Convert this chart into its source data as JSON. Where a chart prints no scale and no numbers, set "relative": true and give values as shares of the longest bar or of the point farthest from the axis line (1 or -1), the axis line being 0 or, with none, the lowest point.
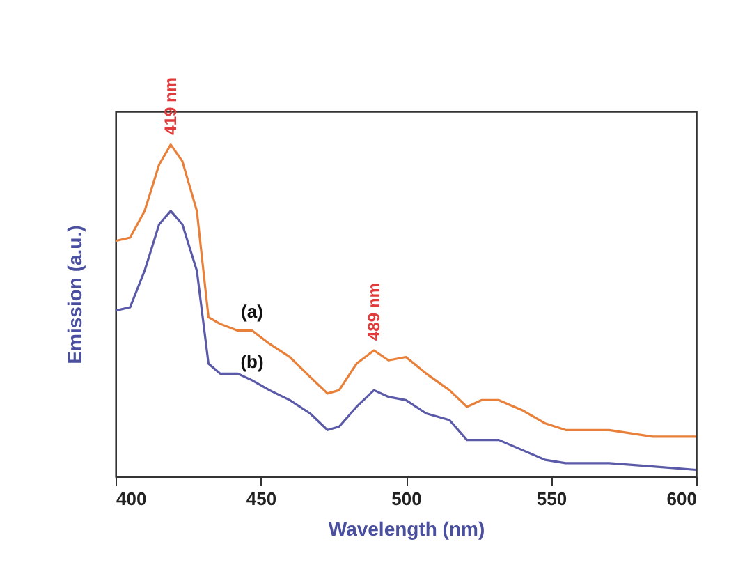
{
  "chart_data": {
    "type": "line",
    "xlabel": "Wavelength (nm)",
    "ylabel": "Emission (a.u.)",
    "relative": true,
    "xlim": [
      400,
      600
    ],
    "xticks": [
      400,
      450,
      500,
      550,
      600
    ],
    "grid": false,
    "legend": false,
    "x": [
      400,
      405,
      410,
      415,
      419,
      423,
      428,
      432,
      436,
      442,
      447,
      453,
      460,
      467,
      473,
      477,
      483,
      489,
      494,
      500,
      507,
      515,
      521,
      526,
      532,
      540,
      548,
      555,
      570,
      585,
      600
    ],
    "series": [
      {
        "name": "(a)",
        "color": "#e8803a",
        "values": [
          0.71,
          0.72,
          0.8,
          0.94,
          1.0,
          0.95,
          0.8,
          0.48,
          0.46,
          0.44,
          0.44,
          0.4,
          0.36,
          0.3,
          0.25,
          0.26,
          0.34,
          0.38,
          0.35,
          0.36,
          0.31,
          0.26,
          0.21,
          0.23,
          0.23,
          0.2,
          0.16,
          0.14,
          0.14,
          0.12,
          0.12
        ]
      },
      {
        "name": "(b)",
        "color": "#5a5aa8",
        "values": [
          0.5,
          0.51,
          0.62,
          0.76,
          0.8,
          0.76,
          0.62,
          0.34,
          0.31,
          0.31,
          0.29,
          0.26,
          0.23,
          0.19,
          0.14,
          0.15,
          0.21,
          0.26,
          0.24,
          0.23,
          0.19,
          0.17,
          0.11,
          0.11,
          0.11,
          0.08,
          0.05,
          0.04,
          0.04,
          0.03,
          0.02
        ]
      }
    ],
    "annotations": [
      {
        "text": "419 nm",
        "x": 419,
        "y": 1.0
      },
      {
        "text": "489 nm",
        "x": 489,
        "y": 0.38
      }
    ]
  }
}
